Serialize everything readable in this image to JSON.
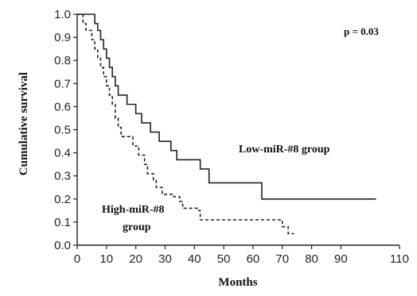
{
  "chart_data": {
    "type": "line",
    "xlabel": "Months",
    "ylabel": "Cumulative survival",
    "xlim": [
      0,
      110
    ],
    "ylim": [
      0,
      1.0
    ],
    "xticks": [
      "0",
      "10",
      "20",
      "30",
      "40",
      "50",
      "60",
      "70",
      "80",
      "90",
      "110"
    ],
    "xtick_values": [
      0,
      10,
      20,
      30,
      40,
      50,
      60,
      70,
      80,
      90,
      110
    ],
    "yticks": [
      "0.0",
      "0.1",
      "0.2",
      "0.3",
      "0.4",
      "0.5",
      "0.6",
      "0.7",
      "0.8",
      "0.9",
      "1.0"
    ],
    "ytick_values": [
      0,
      0.1,
      0.2,
      0.3,
      0.4,
      0.5,
      0.6,
      0.7,
      0.8,
      0.9,
      1.0
    ],
    "grid": false,
    "annotation_p": "p = 0.03",
    "series": [
      {
        "label_lines": [
          "Low-miR-#8 group"
        ],
        "style": "solid",
        "color": "#222222",
        "x": [
          0,
          6,
          7,
          8,
          9,
          10,
          11,
          12,
          13,
          14,
          15,
          17,
          20,
          22,
          25,
          28,
          32,
          34,
          42,
          45,
          63,
          102
        ],
        "y": [
          1.0,
          0.96,
          0.93,
          0.89,
          0.85,
          0.81,
          0.77,
          0.73,
          0.69,
          0.65,
          0.65,
          0.61,
          0.57,
          0.53,
          0.49,
          0.45,
          0.41,
          0.37,
          0.33,
          0.27,
          0.2,
          0.2
        ]
      },
      {
        "label_lines": [
          "High-miR-#8",
          "group"
        ],
        "style": "dashed",
        "color": "#222222",
        "x": [
          0,
          2,
          3,
          5,
          6,
          7,
          8,
          9,
          10,
          11,
          12,
          13,
          14,
          15,
          19,
          21,
          23,
          24,
          26,
          27,
          29,
          30,
          33,
          35,
          36,
          41,
          42,
          70,
          72,
          74
        ],
        "y": [
          1.0,
          0.96,
          0.93,
          0.89,
          0.85,
          0.81,
          0.77,
          0.73,
          0.69,
          0.65,
          0.61,
          0.55,
          0.51,
          0.47,
          0.43,
          0.39,
          0.35,
          0.31,
          0.28,
          0.25,
          0.22,
          0.22,
          0.21,
          0.19,
          0.16,
          0.15,
          0.11,
          0.08,
          0.05,
          0.05
        ]
      }
    ]
  }
}
